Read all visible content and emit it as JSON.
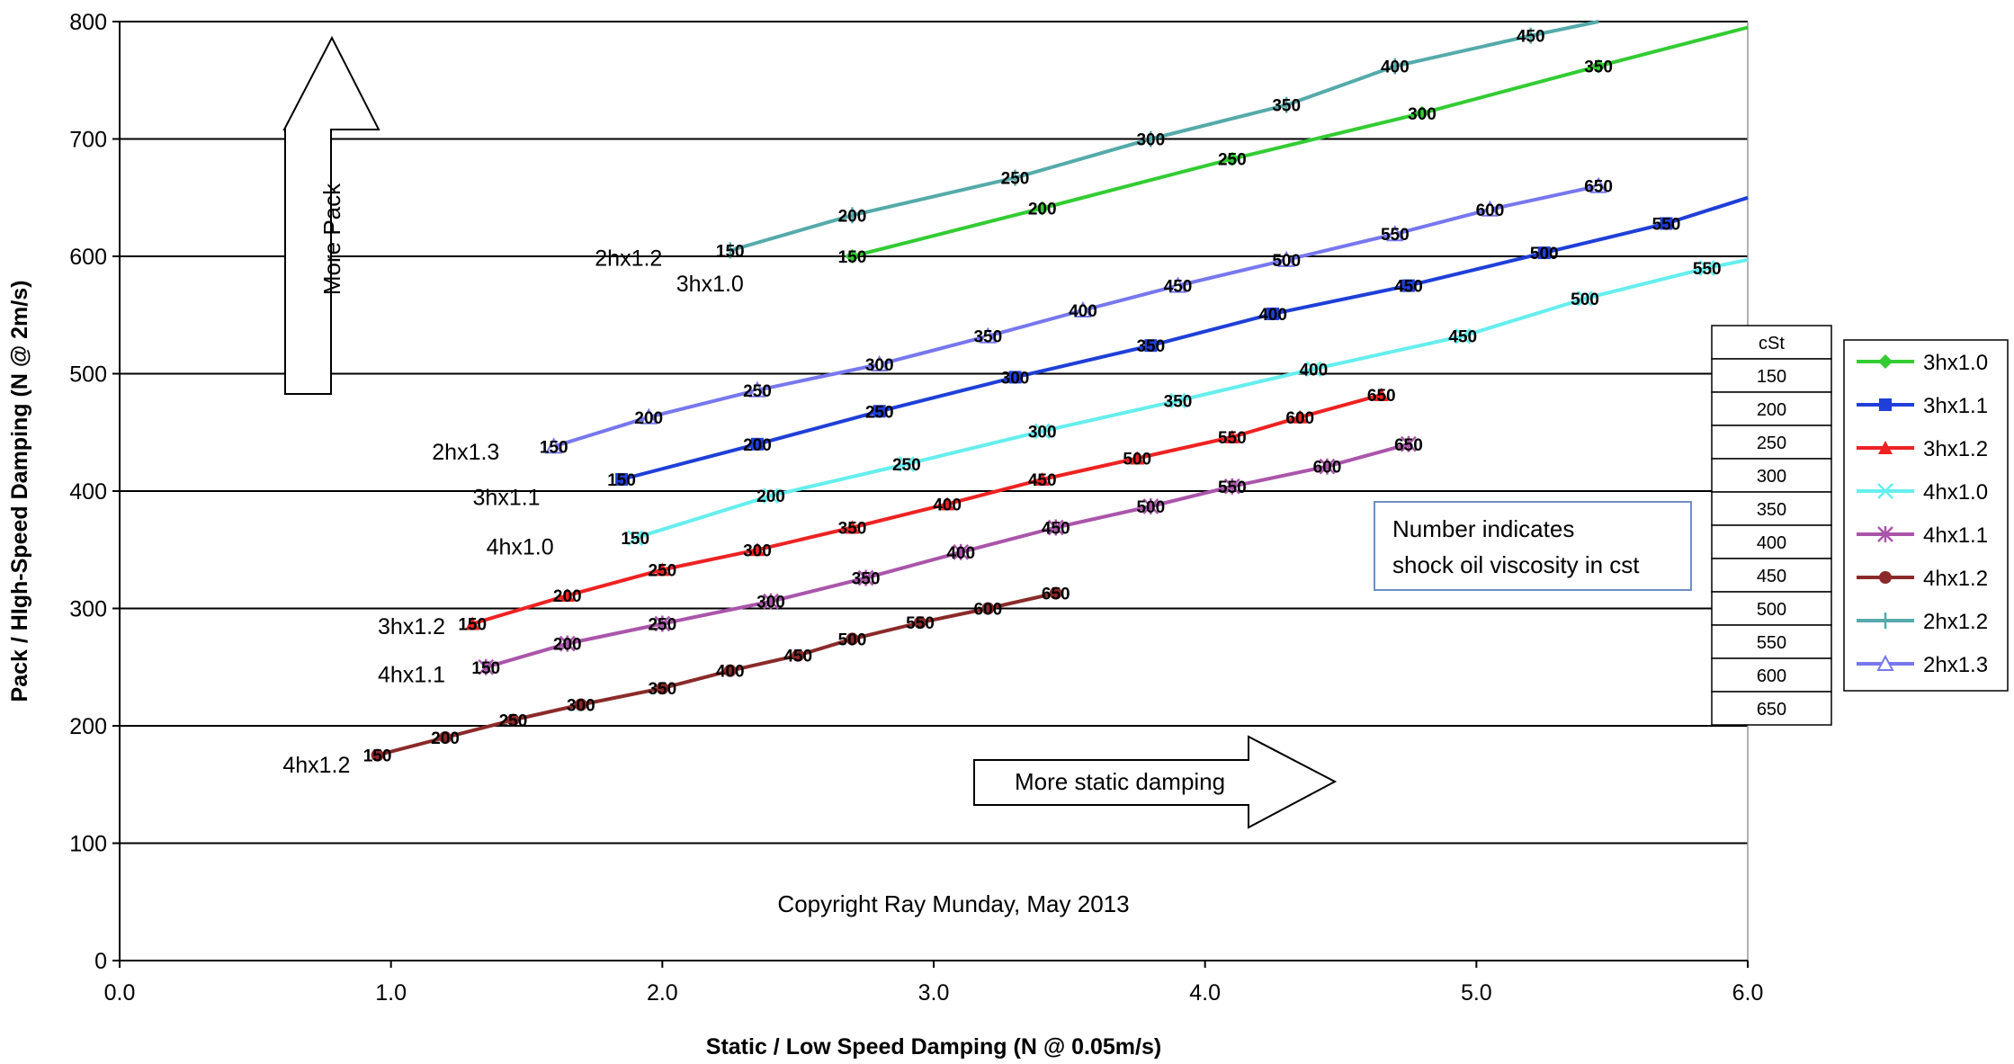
{
  "chart_data": {
    "type": "line",
    "xlabel": "Static / Low Speed Damping (N @ 0.05m/s)",
    "ylabel": "Pack / HIgh-Speed Damping (N @ 2m/s)",
    "xlim": [
      0,
      6
    ],
    "ylim": [
      0,
      800
    ],
    "x_ticks": [
      "0.0",
      "1.0",
      "2.0",
      "3.0",
      "4.0",
      "5.0",
      "6.0"
    ],
    "y_ticks": [
      "0",
      "100",
      "200",
      "300",
      "400",
      "500",
      "600",
      "700",
      "800"
    ],
    "grid": "horizontal",
    "legend_position": "right",
    "series": [
      {
        "name": "3hx1.0",
        "color": "#33cc33",
        "marker": "diamond",
        "end_label": "3hx1.0",
        "points": [
          [
            2.7,
            600,
            "150"
          ],
          [
            3.4,
            641,
            "200"
          ],
          [
            4.1,
            683,
            "250"
          ],
          [
            4.8,
            722,
            "300"
          ],
          [
            5.45,
            762,
            "350"
          ],
          [
            6.0,
            795,
            ""
          ]
        ]
      },
      {
        "name": "3hx1.1",
        "color": "#1f3fd8",
        "marker": "square",
        "end_label": "3hx1.1",
        "points": [
          [
            1.85,
            410,
            "150"
          ],
          [
            2.35,
            440,
            "200"
          ],
          [
            2.8,
            468,
            "250"
          ],
          [
            3.3,
            497,
            "300"
          ],
          [
            3.8,
            524,
            "350"
          ],
          [
            4.25,
            551,
            "400"
          ],
          [
            4.75,
            575,
            "450"
          ],
          [
            5.25,
            603,
            "500"
          ],
          [
            5.7,
            628,
            "550"
          ],
          [
            6.0,
            650,
            ""
          ]
        ]
      },
      {
        "name": "3hx1.2",
        "color": "#ee2222",
        "marker": "triangle",
        "end_label": "3hx1.2",
        "points": [
          [
            1.3,
            287,
            "150"
          ],
          [
            1.65,
            311,
            "200"
          ],
          [
            2.0,
            333,
            "250"
          ],
          [
            2.35,
            350,
            "300"
          ],
          [
            2.7,
            369,
            "350"
          ],
          [
            3.05,
            389,
            "400"
          ],
          [
            3.4,
            410,
            "450"
          ],
          [
            3.75,
            428,
            "500"
          ],
          [
            4.1,
            446,
            "550"
          ],
          [
            4.35,
            463,
            "600"
          ],
          [
            4.65,
            482,
            "650"
          ]
        ]
      },
      {
        "name": "4hx1.0",
        "color": "#66eeee",
        "marker": "x",
        "end_label": "4hx1.0",
        "points": [
          [
            1.9,
            360,
            "150"
          ],
          [
            2.4,
            396,
            "200"
          ],
          [
            2.9,
            423,
            "250"
          ],
          [
            3.4,
            451,
            "300"
          ],
          [
            3.9,
            477,
            "350"
          ],
          [
            4.4,
            504,
            "400"
          ],
          [
            4.95,
            532,
            "450"
          ],
          [
            5.4,
            564,
            "500"
          ],
          [
            5.85,
            590,
            "550"
          ],
          [
            6.0,
            597,
            ""
          ]
        ]
      },
      {
        "name": "4hx1.1",
        "color": "#aa55aa",
        "marker": "star",
        "end_label": "4hx1.1",
        "points": [
          [
            1.35,
            250,
            "150"
          ],
          [
            1.65,
            270,
            "200"
          ],
          [
            2.0,
            287,
            "250"
          ],
          [
            2.4,
            306,
            "300"
          ],
          [
            2.75,
            326,
            "350"
          ],
          [
            3.1,
            348,
            "400"
          ],
          [
            3.45,
            369,
            "450"
          ],
          [
            3.8,
            387,
            "500"
          ],
          [
            4.1,
            404,
            "550"
          ],
          [
            4.45,
            421,
            "600"
          ],
          [
            4.75,
            440,
            "650"
          ]
        ]
      },
      {
        "name": "4hx1.2",
        "color": "#8b2a2a",
        "marker": "circle",
        "end_label": "4hx1.2",
        "points": [
          [
            0.95,
            175,
            "150"
          ],
          [
            1.2,
            190,
            "200"
          ],
          [
            1.45,
            205,
            "250"
          ],
          [
            1.7,
            218,
            "300"
          ],
          [
            2.0,
            232,
            "350"
          ],
          [
            2.25,
            247,
            "400"
          ],
          [
            2.5,
            260,
            "450"
          ],
          [
            2.7,
            274,
            "500"
          ],
          [
            2.95,
            288,
            "550"
          ],
          [
            3.2,
            300,
            "600"
          ],
          [
            3.45,
            313,
            "650"
          ]
        ]
      },
      {
        "name": "2hx1.2",
        "color": "#55aaaa",
        "marker": "plus",
        "end_label": "2hx1.2",
        "points": [
          [
            2.25,
            605,
            "150"
          ],
          [
            2.7,
            635,
            "200"
          ],
          [
            3.3,
            667,
            "250"
          ],
          [
            3.8,
            700,
            "300"
          ],
          [
            4.3,
            729,
            "350"
          ],
          [
            4.7,
            762,
            "400"
          ],
          [
            5.2,
            788,
            "450"
          ],
          [
            5.45,
            800,
            ""
          ]
        ]
      },
      {
        "name": "2hx1.3",
        "color": "#7777ee",
        "marker": "triangle-open",
        "end_label": "2hx1.3",
        "points": [
          [
            1.6,
            438,
            "150"
          ],
          [
            1.95,
            463,
            "200"
          ],
          [
            2.35,
            486,
            "250"
          ],
          [
            2.8,
            508,
            "300"
          ],
          [
            3.2,
            532,
            "350"
          ],
          [
            3.55,
            554,
            "400"
          ],
          [
            3.9,
            575,
            "450"
          ],
          [
            4.3,
            597,
            "500"
          ],
          [
            4.7,
            619,
            "550"
          ],
          [
            5.05,
            640,
            "600"
          ],
          [
            5.45,
            660,
            "650"
          ]
        ]
      }
    ],
    "series_label_positions": {
      "3hx1.0": [
        2.3,
        570
      ],
      "3hx1.1": [
        1.55,
        388
      ],
      "3hx1.2": [
        1.2,
        278
      ],
      "4hx1.0": [
        1.6,
        346
      ],
      "4hx1.1": [
        1.2,
        237
      ],
      "4hx1.2": [
        0.85,
        160
      ],
      "2hx1.2": [
        2.0,
        592
      ],
      "2hx1.3": [
        1.4,
        427
      ]
    },
    "viscosity_table": {
      "header": "cSt",
      "values": [
        "150",
        "200",
        "250",
        "300",
        "350",
        "400",
        "450",
        "500",
        "550",
        "600",
        "650"
      ]
    },
    "annotations": {
      "more_pack": "More Pack",
      "more_static": "More static damping",
      "note_line1": "Number indicates",
      "note_line2": "shock oil viscosity in cst",
      "copyright": "Copyright Ray Munday, May 2013"
    }
  }
}
